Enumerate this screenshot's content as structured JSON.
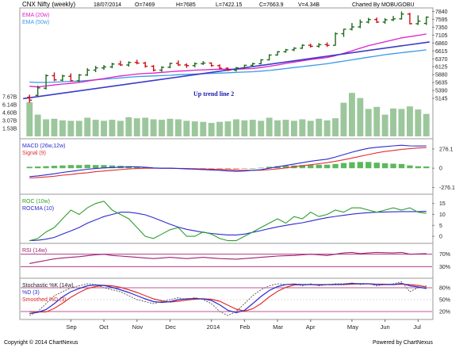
{
  "header": {
    "title": "CNX Nifty (weekly)",
    "date": "18/07/2014",
    "open": "O=7469",
    "high": "H=7685",
    "low": "L=7422.15",
    "close": "C=7663.9",
    "volume": "V=4.34B",
    "charted_by": "Charted By MOBUGOBU"
  },
  "footer": {
    "copyright": "Copyright © 2014 ChartNexus",
    "powered": "Powered by ChartNexus"
  },
  "colors": {
    "up": "#1e6b1e",
    "down": "#cc1111",
    "ema20": "#e020c8",
    "ema50": "#3a9ae8",
    "trend": "#3a3ac8",
    "volume": "#9cc79c",
    "macd": "#2a2ad0",
    "signal": "#e03030",
    "hist_pos": "#5cb85c",
    "hist_neg": "#e8a090",
    "roc": "#2e9e2e",
    "rocma": "#2a2ad0",
    "rsi": "#a02070",
    "k": "#555555",
    "d": "#2a2ad0",
    "smoothed": "#e03030",
    "frame": "#b0b0b0"
  },
  "chart_data": [
    {
      "type": "candlestick",
      "panel": "price",
      "title": "CNX Nifty (weekly)",
      "legend": [
        "EMA (20w)",
        "EMA (50w)"
      ],
      "annotation": "Up trend line 2",
      "y_ticks": [
        "7840",
        "7595",
        "7350",
        "7105",
        "6860",
        "6615",
        "6370",
        "6125",
        "5880",
        "5635",
        "5390",
        "5145"
      ],
      "ylim": [
        5000,
        7900
      ],
      "x_ticks": [
        "Sep",
        "Oct",
        "Nov",
        "Dec",
        "2014",
        "Feb",
        "Mar",
        "Apr",
        "May",
        "Jun",
        "Jul"
      ],
      "x_tick_weeks": [
        5,
        9,
        13,
        17,
        22,
        26,
        30,
        34,
        39,
        43,
        47
      ],
      "weeks": 49,
      "ohlc": [
        [
          5180,
          5260,
          5010,
          5090
        ],
        [
          5240,
          5540,
          5220,
          5470
        ],
        [
          5460,
          5890,
          5420,
          5850
        ],
        [
          5850,
          5950,
          5680,
          5720
        ],
        [
          5710,
          5880,
          5680,
          5840
        ],
        [
          5830,
          5920,
          5660,
          5690
        ],
        [
          5690,
          5900,
          5650,
          5870
        ],
        [
          5870,
          6080,
          5840,
          6020
        ],
        [
          6020,
          6150,
          5960,
          6090
        ],
        [
          6090,
          6180,
          6030,
          6120
        ],
        [
          6120,
          6250,
          6080,
          6210
        ],
        [
          6210,
          6310,
          6150,
          6180
        ],
        [
          6180,
          6290,
          6130,
          6260
        ],
        [
          6260,
          6340,
          6200,
          6240
        ],
        [
          6240,
          6280,
          6100,
          6140
        ],
        [
          6140,
          6180,
          5980,
          6020
        ],
        [
          6020,
          6140,
          5970,
          6110
        ],
        [
          6110,
          6250,
          6080,
          6230
        ],
        [
          6230,
          6320,
          6150,
          6180
        ],
        [
          6180,
          6230,
          6090,
          6160
        ],
        [
          6160,
          6260,
          6110,
          6220
        ],
        [
          6220,
          6300,
          6180,
          6240
        ],
        [
          6240,
          6260,
          6130,
          6160
        ],
        [
          6160,
          6200,
          6040,
          6080
        ],
        [
          6080,
          6100,
          5990,
          6020
        ],
        [
          6020,
          6120,
          5980,
          6090
        ],
        [
          6090,
          6190,
          6060,
          6170
        ],
        [
          6170,
          6250,
          6130,
          6220
        ],
        [
          6220,
          6360,
          6200,
          6340
        ],
        [
          6340,
          6510,
          6320,
          6490
        ],
        [
          6490,
          6610,
          6470,
          6590
        ],
        [
          6590,
          6680,
          6560,
          6650
        ],
        [
          6650,
          6730,
          6610,
          6700
        ],
        [
          6700,
          6820,
          6680,
          6790
        ],
        [
          6790,
          6840,
          6720,
          6760
        ],
        [
          6760,
          6860,
          6720,
          6810
        ],
        [
          6810,
          6880,
          6740,
          6790
        ],
        [
          6790,
          7190,
          6780,
          7150
        ],
        [
          7150,
          7300,
          7050,
          7290
        ],
        [
          7290,
          7480,
          7250,
          7360
        ],
        [
          7360,
          7590,
          7320,
          7510
        ],
        [
          7510,
          7640,
          7470,
          7590
        ],
        [
          7590,
          7650,
          7480,
          7510
        ],
        [
          7510,
          7630,
          7460,
          7580
        ],
        [
          7580,
          7700,
          7540,
          7610
        ],
        [
          7610,
          7840,
          7590,
          7760
        ],
        [
          7760,
          7800,
          7440,
          7460
        ],
        [
          7460,
          7720,
          7420,
          7540
        ],
        [
          7469,
          7685,
          7422.15,
          7663.9
        ]
      ],
      "ema20": [
        5520,
        5500,
        5530,
        5560,
        5590,
        5610,
        5640,
        5680,
        5720,
        5760,
        5800,
        5840,
        5870,
        5900,
        5920,
        5930,
        5950,
        5970,
        5990,
        6000,
        6020,
        6030,
        6040,
        6050,
        6050,
        6050,
        6060,
        6070,
        6100,
        6140,
        6180,
        6230,
        6270,
        6310,
        6350,
        6380,
        6410,
        6470,
        6540,
        6620,
        6700,
        6780,
        6840,
        6900,
        6960,
        7020,
        7060,
        7100,
        7140
      ],
      "ema50": [
        5650,
        5640,
        5640,
        5650,
        5660,
        5670,
        5680,
        5700,
        5720,
        5740,
        5760,
        5780,
        5800,
        5820,
        5830,
        5840,
        5850,
        5860,
        5880,
        5890,
        5900,
        5910,
        5920,
        5930,
        5940,
        5950,
        5960,
        5970,
        5990,
        6010,
        6040,
        6070,
        6100,
        6130,
        6160,
        6190,
        6220,
        6260,
        6300,
        6340,
        6380,
        6420,
        6460,
        6500,
        6530,
        6560,
        6590,
        6620,
        6650
      ],
      "trend_line": [
        [
          0,
          5210
        ],
        [
          48,
          6870
        ]
      ]
    },
    {
      "type": "bar",
      "panel": "volume",
      "y_ticks": [
        "7.67B",
        "6.14B",
        "4.60B",
        "3.07B",
        "1.53B"
      ],
      "ylim": [
        0,
        9.2
      ],
      "values": [
        6.6,
        4.2,
        3.3,
        3.4,
        3.1,
        3.0,
        3.0,
        3.6,
        3.2,
        3.0,
        3.2,
        3.0,
        3.7,
        3.5,
        3.6,
        3.3,
        3.2,
        3.4,
        3.3,
        3.0,
        2.9,
        2.8,
        2.6,
        2.8,
        2.9,
        3.3,
        3.1,
        3.2,
        3.0,
        3.6,
        3.1,
        3.2,
        3.0,
        3.3,
        3.0,
        3.4,
        3.1,
        3.5,
        6.5,
        8.4,
        7.4,
        5.3,
        5.7,
        4.2,
        5.4,
        5.3,
        5.8,
        5.2,
        4.34
      ]
    },
    {
      "type": "line",
      "panel": "macd",
      "legend": [
        "MACD (26w,12w)",
        "Signal (9)"
      ],
      "y_ticks": [
        "276.1",
        "0",
        "-276.1"
      ],
      "ylim": [
        -350,
        400
      ],
      "macd": [
        -120,
        -110,
        -95,
        -80,
        -60,
        -45,
        -30,
        -15,
        -5,
        5,
        10,
        15,
        20,
        20,
        15,
        5,
        0,
        0,
        -5,
        -10,
        -15,
        -20,
        -25,
        -30,
        -40,
        -45,
        -40,
        -30,
        -20,
        0,
        20,
        40,
        60,
        80,
        100,
        115,
        130,
        160,
        195,
        230,
        260,
        285,
        300,
        310,
        320,
        330,
        320,
        318,
        320
      ],
      "signal": [
        -140,
        -135,
        -125,
        -115,
        -100,
        -90,
        -75,
        -65,
        -50,
        -40,
        -30,
        -20,
        -10,
        -5,
        0,
        0,
        0,
        0,
        -2,
        -5,
        -8,
        -10,
        -15,
        -18,
        -22,
        -28,
        -30,
        -30,
        -28,
        -20,
        -10,
        5,
        20,
        35,
        50,
        65,
        80,
        100,
        120,
        145,
        170,
        195,
        220,
        240,
        255,
        270,
        280,
        290,
        295
      ],
      "hist": [
        20,
        25,
        30,
        35,
        40,
        45,
        45,
        50,
        45,
        45,
        40,
        35,
        30,
        25,
        15,
        5,
        0,
        0,
        -3,
        -5,
        -7,
        -10,
        -10,
        -12,
        -18,
        -17,
        -10,
        0,
        8,
        20,
        30,
        35,
        40,
        45,
        50,
        50,
        50,
        60,
        75,
        85,
        90,
        90,
        80,
        70,
        65,
        60,
        40,
        28,
        25
      ]
    },
    {
      "type": "line",
      "panel": "roc",
      "legend": [
        "ROC (10w)",
        "ROCMA (10)"
      ],
      "y_ticks": [
        "15",
        "10",
        "5",
        "0"
      ],
      "ylim": [
        -2.5,
        18.5
      ],
      "roc": [
        -2,
        -1,
        2,
        4,
        8,
        12,
        10,
        13,
        15,
        16,
        12,
        10,
        8,
        4,
        0,
        -1,
        1,
        3,
        4,
        0,
        0,
        2,
        1,
        -1,
        -2,
        -2,
        0,
        2,
        4,
        6,
        8,
        6,
        9,
        8,
        11,
        9,
        10,
        12,
        11,
        13,
        13,
        12,
        11,
        12,
        13,
        12,
        13,
        11,
        10.5
      ],
      "rocma": [
        -2,
        -1.8,
        -1.3,
        -0.5,
        1,
        2.5,
        4,
        6,
        7.5,
        9,
        10,
        11,
        11,
        10.5,
        9.8,
        8.5,
        7,
        5.5,
        4.2,
        3.2,
        2.5,
        1.8,
        1.3,
        0.9,
        0.6,
        0.6,
        1,
        1.8,
        2.6,
        3.5,
        4.3,
        5,
        5.6,
        6.2,
        7,
        7.8,
        8.5,
        9.1,
        9.6,
        10.1,
        10.5,
        10.8,
        11,
        11.1,
        11.2,
        11.3,
        11.3,
        11.3,
        11.4
      ]
    },
    {
      "type": "line",
      "panel": "rsi",
      "legend": [
        "RSI (14w)"
      ],
      "y_ticks": [
        "70%",
        "30%"
      ],
      "ylim": [
        0,
        100
      ],
      "rsi": [
        40,
        45,
        50,
        55,
        58,
        60,
        62,
        65,
        68,
        70,
        66,
        64,
        62,
        60,
        58,
        56,
        58,
        60,
        58,
        56,
        58,
        60,
        58,
        56,
        55,
        54,
        56,
        58,
        60,
        62,
        64,
        65,
        66,
        68,
        70,
        68,
        66,
        70,
        74,
        76,
        72,
        74,
        76,
        75,
        74,
        76,
        70,
        71,
        72
      ]
    },
    {
      "type": "line",
      "panel": "stochastic",
      "legend": [
        "Stochastic %K (14w)",
        "%D (3)",
        "Smoothed %D (3)"
      ],
      "y_ticks": [
        "80%",
        "50%",
        "20%"
      ],
      "ylim": [
        0,
        100
      ],
      "k": [
        10,
        20,
        40,
        60,
        70,
        80,
        85,
        90,
        88,
        80,
        75,
        70,
        60,
        50,
        45,
        40,
        45,
        50,
        55,
        50,
        55,
        50,
        40,
        20,
        10,
        20,
        40,
        60,
        75,
        85,
        90,
        88,
        90,
        85,
        90,
        85,
        88,
        90,
        90,
        92,
        88,
        90,
        85,
        88,
        90,
        95,
        70,
        80,
        85
      ],
      "d": [
        15,
        18,
        25,
        40,
        57,
        70,
        78,
        85,
        87,
        86,
        81,
        75,
        68,
        60,
        52,
        45,
        43,
        45,
        50,
        52,
        53,
        52,
        48,
        37,
        23,
        17,
        23,
        40,
        58,
        73,
        83,
        88,
        89,
        88,
        88,
        87,
        88,
        88,
        89,
        91,
        90,
        90,
        88,
        88,
        88,
        91,
        85,
        82,
        78
      ],
      "smoothed": [
        20,
        19,
        19,
        28,
        41,
        56,
        68,
        78,
        83,
        86,
        85,
        81,
        75,
        68,
        60,
        52,
        47,
        44,
        46,
        49,
        51,
        52,
        51,
        46,
        36,
        26,
        21,
        27,
        40,
        57,
        71,
        81,
        87,
        88,
        88,
        88,
        88,
        88,
        88,
        89,
        90,
        90,
        89,
        89,
        88,
        89,
        88,
        86,
        82
      ]
    }
  ]
}
